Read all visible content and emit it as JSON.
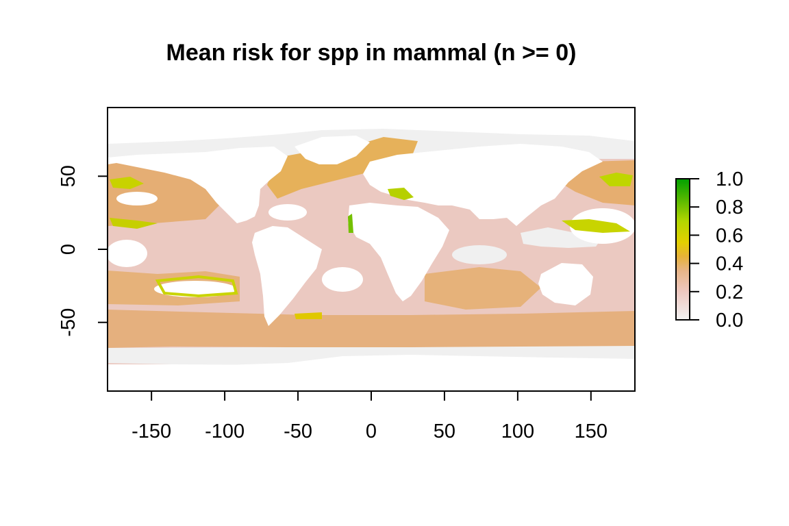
{
  "title": "Mean risk for spp in mammal (n >= 0)",
  "map": {
    "x_ticks": [
      "-150",
      "-100",
      "-50",
      "0",
      "50",
      "100",
      "150"
    ],
    "y_ticks": [
      "50",
      "0",
      "-50"
    ],
    "xlim": [
      -180,
      180
    ],
    "ylim": [
      -97,
      97
    ],
    "background_color": "#ffffff",
    "ice_color": "#f0f0f0"
  },
  "legend": {
    "ticks": [
      "0.0",
      "0.2",
      "0.4",
      "0.6",
      "0.8",
      "1.0"
    ],
    "range": [
      0,
      1
    ],
    "colors": [
      "#f2f2f2",
      "#eec9c1",
      "#e9b69a",
      "#e5a971",
      "#e6c02b",
      "#c9d800",
      "#8ecc00",
      "#4ab100",
      "#009f00"
    ]
  }
}
